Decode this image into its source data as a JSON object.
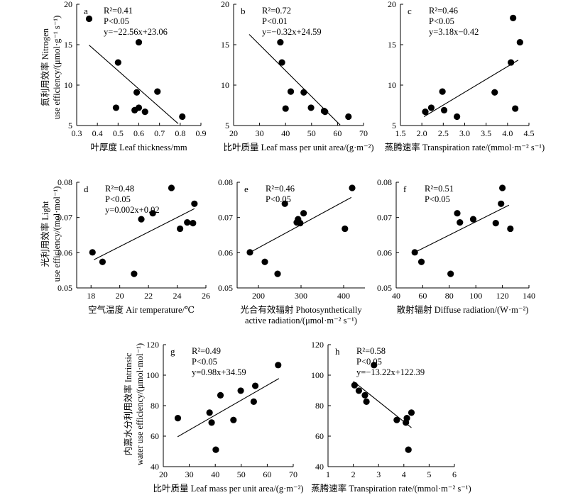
{
  "chart_data": [
    {
      "id": "a",
      "type": "scatter",
      "panel_label": "a",
      "stats": [
        "R²=0.41",
        "P<0.05",
        "y=−22.56x+23.06"
      ],
      "xlabel": "叶厚度 Leaf thickness/mm",
      "xlim": [
        0.3,
        0.9
      ],
      "ylim": [
        5,
        20
      ],
      "xticks": [
        "0.3",
        "0.4",
        "0.5",
        "0.6",
        "0.7",
        "0.8",
        "0.9"
      ],
      "yticks": [
        "5",
        "10",
        "15",
        "20"
      ],
      "x": [
        0.36,
        0.49,
        0.5,
        0.58,
        0.59,
        0.6,
        0.6,
        0.63,
        0.69,
        0.81
      ],
      "y": [
        18.2,
        7.2,
        12.8,
        6.9,
        9.1,
        15.3,
        7.2,
        6.7,
        9.2,
        6.1
      ],
      "fit": {
        "slope": -22.56,
        "intercept": 23.06,
        "x_range": [
          0.36,
          0.79
        ]
      }
    },
    {
      "id": "b",
      "type": "scatter",
      "panel_label": "b",
      "stats": [
        "R²=0.72",
        "P<0.01",
        "y=−0.32x+24.59"
      ],
      "xlabel": "比叶质量 Leaf mass per unit area/(g·m⁻²)",
      "xlim": [
        20,
        70
      ],
      "ylim": [
        5,
        20
      ],
      "xticks": [
        "20",
        "30",
        "40",
        "50",
        "60",
        "70"
      ],
      "yticks": [
        "5",
        "10",
        "15",
        "20"
      ],
      "x": [
        38.0,
        38.6,
        40.0,
        42.0,
        47.0,
        49.8,
        54.8,
        55.2,
        64.2
      ],
      "y": [
        15.3,
        12.8,
        7.1,
        9.2,
        9.1,
        7.2,
        6.8,
        6.7,
        6.1
      ],
      "fit": {
        "slope": -0.32,
        "intercept": 24.59,
        "x_range": [
          26,
          61
        ]
      }
    },
    {
      "id": "c",
      "type": "scatter",
      "panel_label": "c",
      "stats": [
        "R²=0.46",
        "P<0.05",
        "y=3.18x−0.42"
      ],
      "xlabel": "蒸腾速率 Transpiration rate/(mmol·m⁻² s⁻¹)",
      "xlim": [
        1.5,
        4.5
      ],
      "ylim": [
        5,
        20
      ],
      "xticks": [
        "1.5",
        "2.0",
        "2.5",
        "3.0",
        "3.5",
        "4.0",
        "4.5"
      ],
      "yticks": [
        "5",
        "10",
        "15",
        "20"
      ],
      "x": [
        2.08,
        2.22,
        2.48,
        2.52,
        2.82,
        3.7,
        4.08,
        4.13,
        4.18,
        4.29
      ],
      "y": [
        6.7,
        7.2,
        9.2,
        6.9,
        6.1,
        9.1,
        12.8,
        18.3,
        7.1,
        15.3
      ],
      "fit": {
        "slope": 3.18,
        "intercept": -0.42,
        "x_range": [
          2.05,
          4.25
        ]
      }
    },
    {
      "id": "d",
      "type": "scatter",
      "panel_label": "d",
      "stats": [
        "R²=0.48",
        "P<0.05",
        "y=0.002x+0.02"
      ],
      "xlabel": "空气温度 Air temperature/℃",
      "xlim": [
        17,
        26
      ],
      "ylim": [
        0.05,
        0.08
      ],
      "xticks": [
        "18",
        "20",
        "22",
        "24",
        "26"
      ],
      "yticks": [
        "0.05",
        "0.06",
        "0.07",
        "0.08"
      ],
      "x": [
        18.1,
        18.8,
        21.0,
        21.5,
        22.3,
        23.6,
        24.2,
        24.7,
        25.1,
        25.2
      ],
      "y": [
        0.0601,
        0.0574,
        0.054,
        0.0695,
        0.0712,
        0.0784,
        0.0668,
        0.0686,
        0.0684,
        0.0739
      ],
      "fit": {
        "x_range": [
          18.2,
          25.2
        ],
        "y_range": [
          0.058,
          0.0725
        ]
      }
    },
    {
      "id": "e",
      "type": "scatter",
      "panel_label": "e",
      "stats": [
        "R²=0.46",
        "P<0.05"
      ],
      "xlabel": "光合有效辐射 Photosynthetically active radiation/(μmol·m⁻² s⁻¹)",
      "xlabel_lines": [
        "光合有效辐射 Photosynthetically",
        "active radiation/(μmol·m⁻² s⁻¹)"
      ],
      "xlim": [
        150,
        450
      ],
      "ylim": [
        0.05,
        0.08
      ],
      "xticks": [
        "200",
        "300",
        "400"
      ],
      "yticks": [
        "0.05",
        "0.06",
        "0.07",
        "0.08"
      ],
      "x": [
        180,
        215,
        245,
        262,
        290,
        293,
        298,
        306,
        403,
        420
      ],
      "y": [
        0.0601,
        0.0574,
        0.054,
        0.0739,
        0.0686,
        0.0695,
        0.0684,
        0.0712,
        0.0668,
        0.0784
      ],
      "fit": {
        "x_range": [
          182,
          418
        ],
        "y_range": [
          0.0602,
          0.0757
        ]
      }
    },
    {
      "id": "f",
      "type": "scatter",
      "panel_label": "f",
      "stats": [
        "R²=0.51",
        "P<0.05"
      ],
      "xlabel": "散射辐射 Diffuse radiation/(W·m⁻²)",
      "xlim": [
        40,
        140
      ],
      "ylim": [
        0.05,
        0.08
      ],
      "xticks": [
        "40",
        "60",
        "80",
        "100",
        "120",
        "140"
      ],
      "yticks": [
        "0.05",
        "0.06",
        "0.07",
        "0.08"
      ],
      "x": [
        54,
        59,
        81,
        86,
        88,
        98,
        115,
        119,
        120,
        126
      ],
      "y": [
        0.0601,
        0.0574,
        0.054,
        0.0712,
        0.0686,
        0.0695,
        0.0684,
        0.0739,
        0.0784,
        0.0668
      ],
      "fit": {
        "x_range": [
          55,
          125
        ],
        "y_range": [
          0.0603,
          0.0735
        ]
      }
    },
    {
      "id": "g",
      "type": "scatter",
      "panel_label": "g",
      "stats": [
        "R²=0.49",
        "P<0.05",
        "y=0.98x+34.59"
      ],
      "xlabel": "比叶质量 Leaf mass per unit area/(g·m⁻²)",
      "xlim": [
        20,
        70
      ],
      "ylim": [
        40,
        120
      ],
      "xticks": [
        "20",
        "30",
        "40",
        "50",
        "60",
        "70"
      ],
      "yticks": [
        "40",
        "60",
        "80",
        "100",
        "120"
      ],
      "x": [
        25.6,
        37.8,
        38.6,
        40.2,
        42.0,
        47.0,
        49.8,
        54.8,
        55.4,
        64.2
      ],
      "y": [
        71.8,
        75.4,
        68.9,
        51.1,
        86.8,
        70.6,
        89.8,
        82.6,
        93.0,
        106.6
      ],
      "fit": {
        "slope": 0.98,
        "intercept": 34.59,
        "x_range": [
          25.5,
          64.5
        ]
      }
    },
    {
      "id": "h",
      "type": "scatter",
      "panel_label": "h",
      "stats": [
        "R²=0.58",
        "P<0.05",
        "y=−13.22x+122.39"
      ],
      "xlabel": "蒸腾速率 Transpiration rate/(mmol·m⁻² s⁻¹)",
      "xlim": [
        1,
        6
      ],
      "ylim": [
        40,
        120
      ],
      "xticks": [
        "1",
        "2",
        "3",
        "4",
        "5",
        "6"
      ],
      "yticks": [
        "40",
        "60",
        "80",
        "100",
        "120"
      ],
      "x": [
        2.05,
        2.22,
        2.46,
        2.52,
        2.82,
        3.72,
        4.08,
        4.12,
        4.18,
        4.3
      ],
      "y": [
        93.4,
        89.8,
        86.8,
        82.6,
        106.6,
        70.6,
        68.9,
        71.8,
        51.1,
        75.4
      ],
      "fit": {
        "slope": -13.22,
        "intercept": 122.39,
        "x_range": [
          2.0,
          4.3
        ]
      }
    }
  ],
  "ylabels": {
    "nitrogen": [
      "氮利用效率 Nitrogen",
      "use efficiency/(μmol·g⁻¹ s⁻¹)"
    ],
    "light": [
      "光利用效率 Light",
      "use efficiency/(mol·mol⁻¹)"
    ],
    "water": [
      "内禀水分利用效率 Intrinsic",
      "water use efficiency/(μmol·mol⁻¹)"
    ]
  }
}
